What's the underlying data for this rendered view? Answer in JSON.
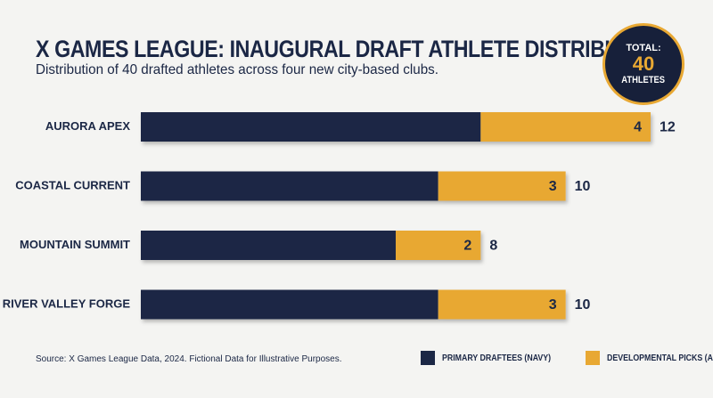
{
  "chart_data": {
    "type": "bar",
    "orientation": "horizontal",
    "stacked": true,
    "title": "X GAMES LEAGUE: INAUGURAL DRAFT ATHLETE DISTRIBUTION",
    "subtitle": "Distribution of 40 drafted athletes across four new city-based clubs.",
    "categories": [
      "AURORA APEX",
      "COASTAL CURRENT",
      "MOUNTAIN SUMMIT",
      "RIVER VALLEY FORGE"
    ],
    "series": [
      {
        "name": "PRIMARY DRAFTEES (NAVY)",
        "values": [
          8,
          7,
          6,
          7
        ],
        "color": "#1b2745"
      },
      {
        "name": "DEVELOPMENTAL PICKS (AMBER)",
        "values": [
          4,
          3,
          2,
          3
        ],
        "color": "#e8a833"
      }
    ],
    "totals": [
      12,
      10,
      8,
      10
    ],
    "xlim": [
      0,
      12
    ],
    "grid": false,
    "legend_position": "bottom-right"
  },
  "badge": {
    "label": "TOTAL:",
    "value": "40",
    "unit": "ATHLETES"
  },
  "footer": {
    "source": "Source: X Games League Data, 2024. Fictional Data for Illustrative Purposes."
  }
}
